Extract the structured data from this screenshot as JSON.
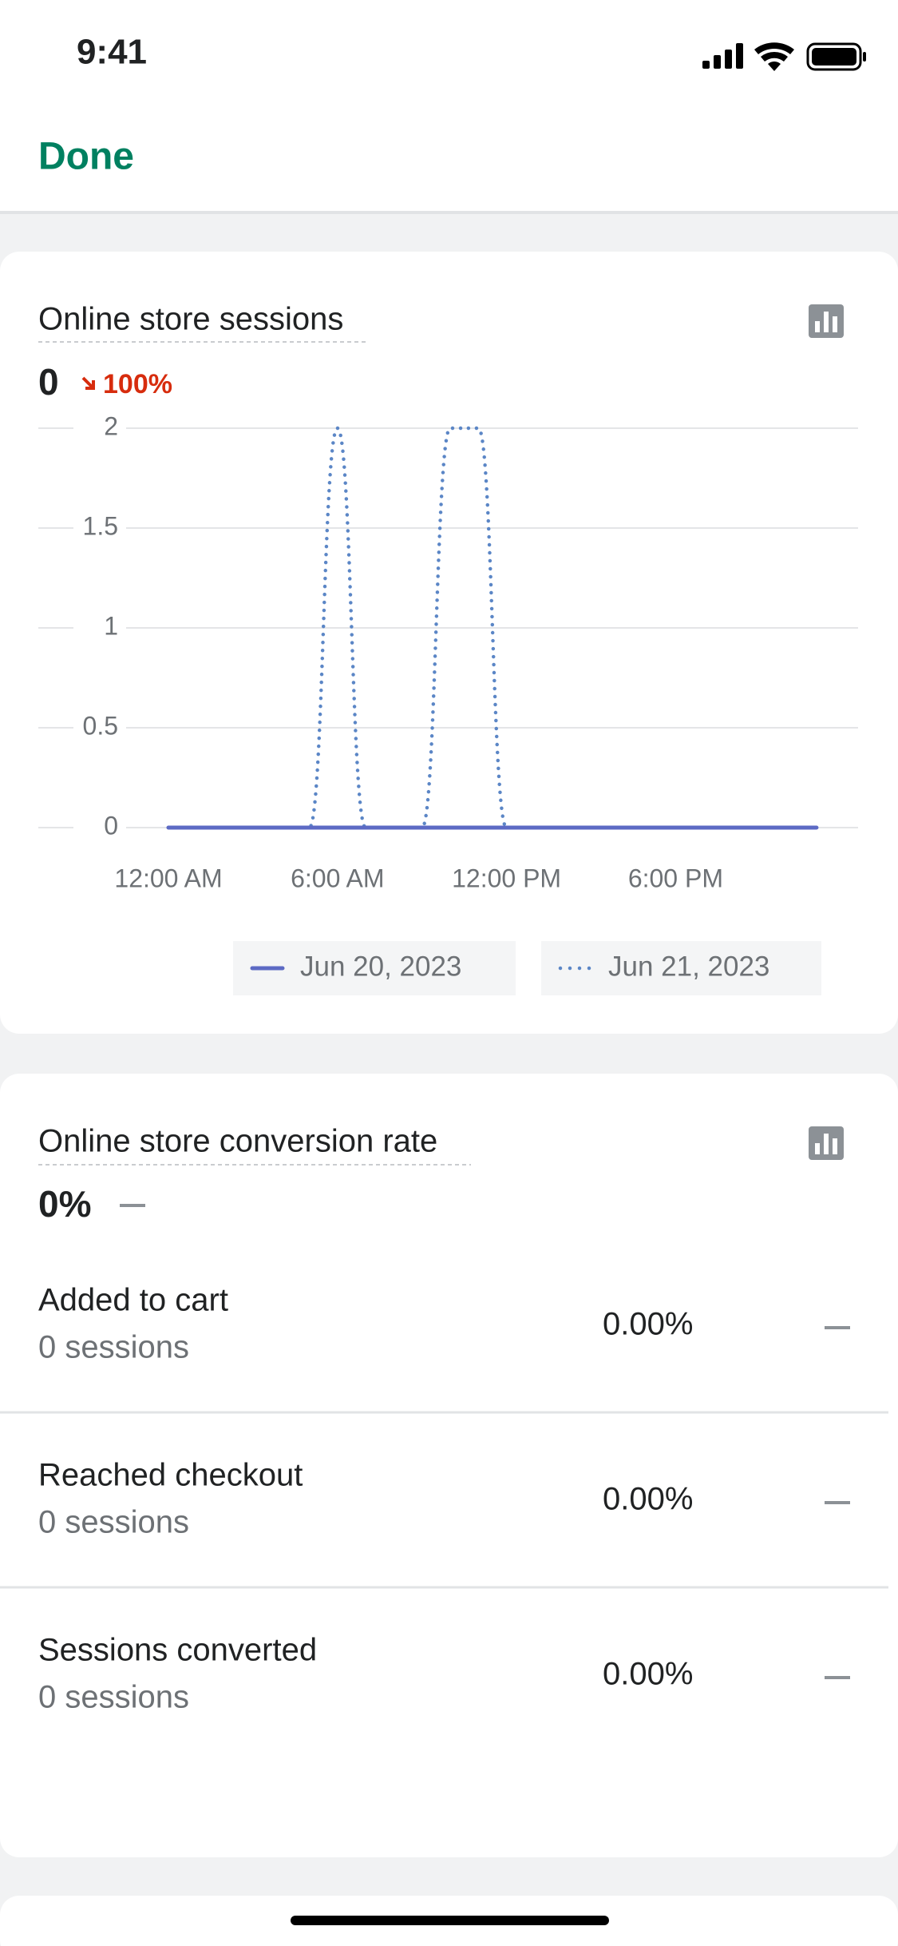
{
  "status_bar": {
    "time": "9:41"
  },
  "nav": {
    "done": "Done"
  },
  "sessions_card": {
    "title": "Online store sessions",
    "value": "0",
    "change": "100%"
  },
  "chart_data": {
    "type": "line",
    "categories": [
      "12:00 AM",
      null,
      null,
      null,
      null,
      null,
      "6:00 AM",
      null,
      null,
      null,
      null,
      null,
      "12:00 PM",
      null,
      null,
      null,
      null,
      null,
      "6:00 PM",
      null,
      null,
      null,
      null,
      null
    ],
    "series": [
      {
        "name": "Jun 20, 2023",
        "color": "#5c6ac4",
        "line_style": "solid",
        "values": [
          0,
          0,
          0,
          0,
          0,
          0,
          0,
          0,
          0,
          0,
          0,
          0,
          0,
          0,
          0,
          0,
          0,
          0,
          0,
          0,
          0,
          0,
          0,
          0
        ]
      },
      {
        "name": "Jun 21, 2023",
        "color": "#5b86c6",
        "line_style": "dotted",
        "values": [
          0,
          0,
          0,
          0,
          0,
          0,
          2,
          0,
          0,
          0,
          2,
          2,
          0,
          0,
          0,
          0,
          0,
          0,
          0,
          0,
          0,
          0,
          0,
          0
        ]
      }
    ],
    "ylim": [
      0,
      2
    ],
    "yticks": [
      0,
      0.5,
      1,
      1.5,
      2
    ],
    "grid": true
  },
  "conversion_card": {
    "title": "Online store conversion rate",
    "value": "0%",
    "rows": [
      {
        "label": "Added to cart",
        "sessions": "0 sessions",
        "rate": "0.00%"
      },
      {
        "label": "Reached checkout",
        "sessions": "0 sessions",
        "rate": "0.00%"
      },
      {
        "label": "Sessions converted",
        "sessions": "0 sessions",
        "rate": "0.00%"
      }
    ]
  }
}
